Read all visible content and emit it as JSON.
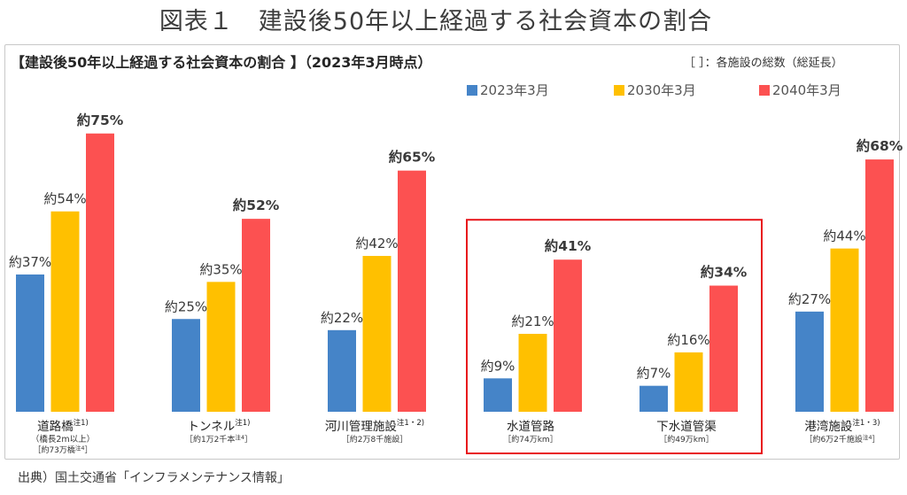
{
  "page": {
    "figure_title": "図表１　建設後50年以上経過する社会資本の割合",
    "source": "出典）国土交通省「インフラメンテナンス情報」"
  },
  "colors": {
    "frame": "#c8c8c8",
    "highlight_box": "#e8161b"
  },
  "chart_data": {
    "type": "bar",
    "title": "【建設後50年以上経過する社会資本の割合 】（2023年3月時点）",
    "annotation": "［ ］：各施設の総数（総延長）",
    "grid": false,
    "legend_position": "top-right",
    "categories": [
      {
        "label": "道路橋",
        "note": "注1)",
        "detail": "（橋長2m以上）",
        "total": {
          "text": "［約73万橋",
          "note": "注4",
          "close": "］"
        },
        "highlight": false
      },
      {
        "label": "トンネル",
        "note": "注1)",
        "detail": "",
        "total": {
          "text": "［約1万2千本",
          "note": "注4",
          "close": "］"
        },
        "highlight": false
      },
      {
        "label": "河川管理施設",
        "note": "注1・2)",
        "detail": "",
        "total": {
          "text": "［約2万8千施設",
          "note": "",
          "close": "］"
        },
        "highlight": false
      },
      {
        "label": "水道管路",
        "note": "",
        "detail": "",
        "total": {
          "text": "［約74万km",
          "note": "",
          "close": "］"
        },
        "highlight": true
      },
      {
        "label": "下水道管渠",
        "note": "",
        "detail": "",
        "total": {
          "text": "［約49万km",
          "note": "",
          "close": "］"
        },
        "highlight": true
      },
      {
        "label": "港湾施設",
        "note": "注1・3)",
        "detail": "",
        "total": {
          "text": "［約6万2千施設",
          "note": "注4",
          "close": "］"
        },
        "highlight": false
      }
    ],
    "series": [
      {
        "name": "2023年3月",
        "color": "#4584c8",
        "label_bold": false,
        "values": [
          37,
          25,
          22,
          9,
          7,
          27
        ],
        "labels": [
          "約37%",
          "約25%",
          "約22%",
          "約9%",
          "約7%",
          "約27%"
        ]
      },
      {
        "name": "2030年3月",
        "color": "#ffc000",
        "label_bold": false,
        "values": [
          54,
          35,
          42,
          21,
          16,
          44
        ],
        "labels": [
          "約54%",
          "約35%",
          "約42%",
          "約21%",
          "約16%",
          "約44%"
        ]
      },
      {
        "name": "2040年3月",
        "color": "#fc5151",
        "label_bold": true,
        "values": [
          75,
          52,
          65,
          41,
          34,
          68
        ],
        "labels": [
          "約75%",
          "約52%",
          "約65%",
          "約41%",
          "約34%",
          "約68%"
        ]
      }
    ]
  }
}
